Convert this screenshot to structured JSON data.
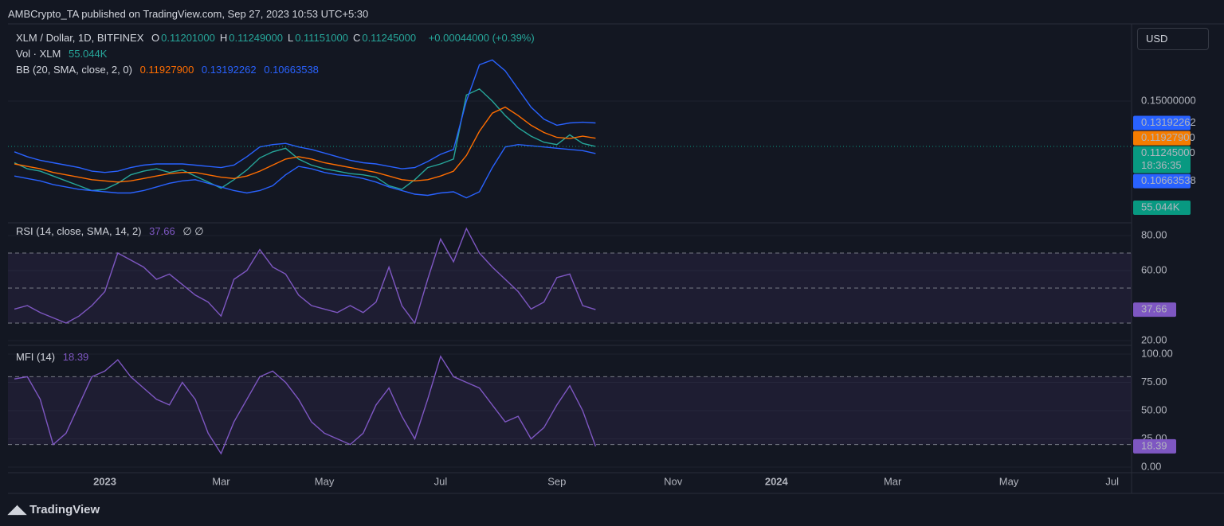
{
  "header": {
    "published": "AMBCrypto_TA published on TradingView.com, Sep 27, 2023 10:53 UTC+5:30",
    "brand": "TradingView"
  },
  "chart_data": [
    {
      "type": "line",
      "legend": {
        "title": "XLM / Dollar, 1D, BITFINEX",
        "ohlc": [
          [
            "O",
            "0.11201000"
          ],
          [
            "H",
            "0.11249000"
          ],
          [
            "L",
            "0.11151000"
          ],
          [
            "C",
            "0.11245000"
          ]
        ],
        "change": "+0.00044000 (+0.39%)",
        "volume_title": "Vol · XLM",
        "volume": "55.044K",
        "bb_title": "BB (20, SMA, close, 2, 0)"
      },
      "currency": "USD",
      "countdown": "18:36:35",
      "series": [
        {
          "color": "#26a69a",
          "values": [
            0.099,
            0.094,
            0.092,
            0.088,
            0.084,
            0.08,
            0.076,
            0.077,
            0.082,
            0.089,
            0.092,
            0.094,
            0.091,
            0.093,
            0.088,
            0.083,
            0.078,
            0.085,
            0.093,
            0.103,
            0.108,
            0.111,
            0.102,
            0.097,
            0.094,
            0.092,
            0.09,
            0.089,
            0.087,
            0.08,
            0.077,
            0.085,
            0.095,
            0.098,
            0.102,
            0.155,
            0.16,
            0.15,
            0.138,
            0.128,
            0.121,
            0.116,
            0.114,
            0.122,
            0.115,
            0.11245,
            null,
            null,
            null,
            null,
            null,
            null,
            null,
            null,
            null,
            null,
            null,
            null,
            null,
            null,
            null,
            null,
            null,
            null,
            null,
            null,
            null,
            null,
            null,
            null,
            null,
            null,
            null,
            null,
            null,
            null,
            null,
            null,
            null,
            null,
            null,
            null,
            null,
            null,
            null,
            null,
            null
          ]
        },
        {
          "color": "#ff6d00",
          "values": [
            0.098,
            0.096,
            0.094,
            0.091,
            0.089,
            0.087,
            0.085,
            0.084,
            0.083,
            0.084,
            0.086,
            0.088,
            0.09,
            0.091,
            0.091,
            0.089,
            0.087,
            0.086,
            0.088,
            0.092,
            0.097,
            0.102,
            0.104,
            0.102,
            0.099,
            0.097,
            0.095,
            0.093,
            0.091,
            0.088,
            0.085,
            0.084,
            0.085,
            0.088,
            0.092,
            0.105,
            0.125,
            0.14,
            0.145,
            0.138,
            0.13,
            0.124,
            0.12,
            0.119,
            0.121,
            0.119279,
            null,
            null,
            null,
            null,
            null,
            null,
            null,
            null,
            null,
            null,
            null,
            null,
            null,
            null,
            null,
            null,
            null,
            null,
            null,
            null,
            null,
            null,
            null,
            null,
            null,
            null,
            null,
            null,
            null,
            null,
            null,
            null,
            null,
            null,
            null,
            null,
            null,
            null,
            null,
            null,
            null
          ]
        },
        {
          "color": "#2962ff",
          "values": [
            0.108,
            0.104,
            0.101,
            0.099,
            0.097,
            0.095,
            0.092,
            0.091,
            0.092,
            0.095,
            0.097,
            0.098,
            0.098,
            0.098,
            0.097,
            0.096,
            0.095,
            0.097,
            0.104,
            0.112,
            0.114,
            0.115,
            0.112,
            0.11,
            0.107,
            0.104,
            0.101,
            0.099,
            0.098,
            0.096,
            0.094,
            0.095,
            0.1,
            0.106,
            0.11,
            0.15,
            0.18,
            0.184,
            0.175,
            0.16,
            0.145,
            0.135,
            0.13,
            0.1319,
            0.1325,
            0.13192262,
            null,
            null,
            null,
            null,
            null,
            null,
            null,
            null,
            null,
            null,
            null,
            null,
            null,
            null,
            null,
            null,
            null,
            null,
            null,
            null,
            null,
            null,
            null,
            null,
            null,
            null,
            null,
            null,
            null,
            null,
            null,
            null,
            null,
            null,
            null,
            null,
            null,
            null,
            null,
            null,
            null
          ]
        },
        {
          "color": "#2962ff",
          "values": [
            0.088,
            0.086,
            0.084,
            0.081,
            0.079,
            0.077,
            0.076,
            0.075,
            0.074,
            0.074,
            0.076,
            0.079,
            0.082,
            0.084,
            0.085,
            0.082,
            0.079,
            0.076,
            0.074,
            0.076,
            0.08,
            0.089,
            0.096,
            0.094,
            0.091,
            0.089,
            0.088,
            0.086,
            0.083,
            0.079,
            0.076,
            0.073,
            0.072,
            0.074,
            0.075,
            0.07,
            0.075,
            0.095,
            0.112,
            0.114,
            0.113,
            0.112,
            0.111,
            0.11,
            0.109,
            0.10663538,
            null,
            null,
            null,
            null,
            null,
            null,
            null,
            null,
            null,
            null,
            null,
            null,
            null,
            null,
            null,
            null,
            null,
            null,
            null,
            null,
            null,
            null,
            null,
            null,
            null,
            null,
            null,
            null,
            null,
            null,
            null,
            null,
            null,
            null,
            null,
            null,
            null,
            null,
            null,
            null,
            null
          ]
        }
      ],
      "ylim": [
        0.0546,
        0.2105
      ],
      "yticks": [
        {
          "value": 0.15,
          "label": "0.15000000"
        }
      ],
      "price_labels": [
        {
          "value": 0.13192262,
          "label": "0.13192262",
          "color": "#2962ff"
        },
        {
          "value": 0.119279,
          "label": "0.11927900",
          "color": "#f57c00"
        },
        {
          "value": 0.11245,
          "label": "0.11245000",
          "color": "#089981"
        },
        {
          "value": 0.10663538,
          "label": "0.10663538",
          "color": "#2962ff"
        }
      ]
    },
    {
      "type": "line",
      "title": "RSI (14, close, SMA, 14, 2)",
      "current": 37.66,
      "extra": "∅ ∅",
      "series": [
        {
          "color": "#7e57c2",
          "values": [
            38,
            40,
            36,
            33,
            30,
            34,
            40,
            48,
            70,
            66,
            62,
            55,
            58,
            52,
            46,
            42,
            34,
            55,
            60,
            72,
            62,
            58,
            46,
            40,
            38,
            36,
            40,
            36,
            42,
            62,
            40,
            30,
            55,
            78,
            65,
            84,
            70,
            62,
            55,
            48,
            38,
            42,
            56,
            58,
            40,
            37.66,
            null,
            null,
            null,
            null,
            null,
            null,
            null,
            null,
            null,
            null,
            null,
            null,
            null,
            null,
            null,
            null,
            null,
            null,
            null,
            null,
            null,
            null,
            null,
            null,
            null,
            null,
            null,
            null,
            null,
            null,
            null,
            null,
            null,
            null,
            null,
            null,
            null,
            null,
            null,
            null,
            null
          ]
        }
      ],
      "ylim": [
        18.18,
        85
      ],
      "yticks": [
        {
          "value": 20,
          "label": "20.00"
        },
        {
          "value": 60,
          "label": "60.00"
        },
        {
          "value": 80,
          "label": "80.00"
        }
      ],
      "bands": [
        70,
        50,
        30
      ]
    },
    {
      "type": "line",
      "title": "MFI (14)",
      "current": 18.39,
      "series": [
        {
          "color": "#7e57c2",
          "values": [
            78,
            80,
            60,
            20,
            30,
            55,
            80,
            85,
            95,
            80,
            70,
            60,
            55,
            75,
            60,
            30,
            12,
            40,
            60,
            80,
            85,
            75,
            60,
            40,
            30,
            25,
            20,
            30,
            55,
            70,
            45,
            25,
            60,
            98,
            80,
            75,
            70,
            55,
            40,
            45,
            25,
            35,
            55,
            72,
            50,
            18.39,
            null,
            null,
            null,
            null,
            null,
            null,
            null,
            null,
            null,
            null,
            null,
            null,
            null,
            null,
            null,
            null,
            null,
            null,
            null,
            null,
            null,
            null,
            null,
            null,
            null,
            null,
            null,
            null,
            null,
            null,
            null,
            null,
            null,
            null,
            null,
            null,
            null,
            null,
            null,
            null,
            null
          ]
        }
      ],
      "ylim": [
        -3.5,
        105.6
      ],
      "yticks": [
        {
          "value": 0,
          "label": "0.00"
        },
        {
          "value": 25,
          "label": "25.00"
        },
        {
          "value": 50,
          "label": "50.00"
        },
        {
          "value": 75,
          "label": "75.00"
        },
        {
          "value": 100,
          "label": "100.00"
        }
      ],
      "bands": [
        80,
        20
      ],
      "categories": [
        null,
        null,
        null,
        null,
        null,
        null,
        null,
        "2023",
        null,
        null,
        null,
        null,
        null,
        null,
        null,
        null,
        "Mar",
        null,
        null,
        null,
        null,
        null,
        null,
        null,
        "May",
        null,
        null,
        null,
        null,
        null,
        null,
        null,
        null,
        "Jul",
        null,
        null,
        null,
        null,
        null,
        null,
        null,
        null,
        "Sep",
        null,
        null,
        null,
        null,
        null,
        null,
        null,
        null,
        "Nov",
        null,
        null,
        null,
        null,
        null,
        null,
        null,
        "2024",
        null,
        null,
        null,
        null,
        null,
        null,
        null,
        null,
        "Mar",
        null,
        null,
        null,
        null,
        null,
        null,
        null,
        null,
        "May",
        null,
        null,
        null,
        null,
        null,
        null,
        null,
        "Jul",
        null
      ]
    }
  ]
}
